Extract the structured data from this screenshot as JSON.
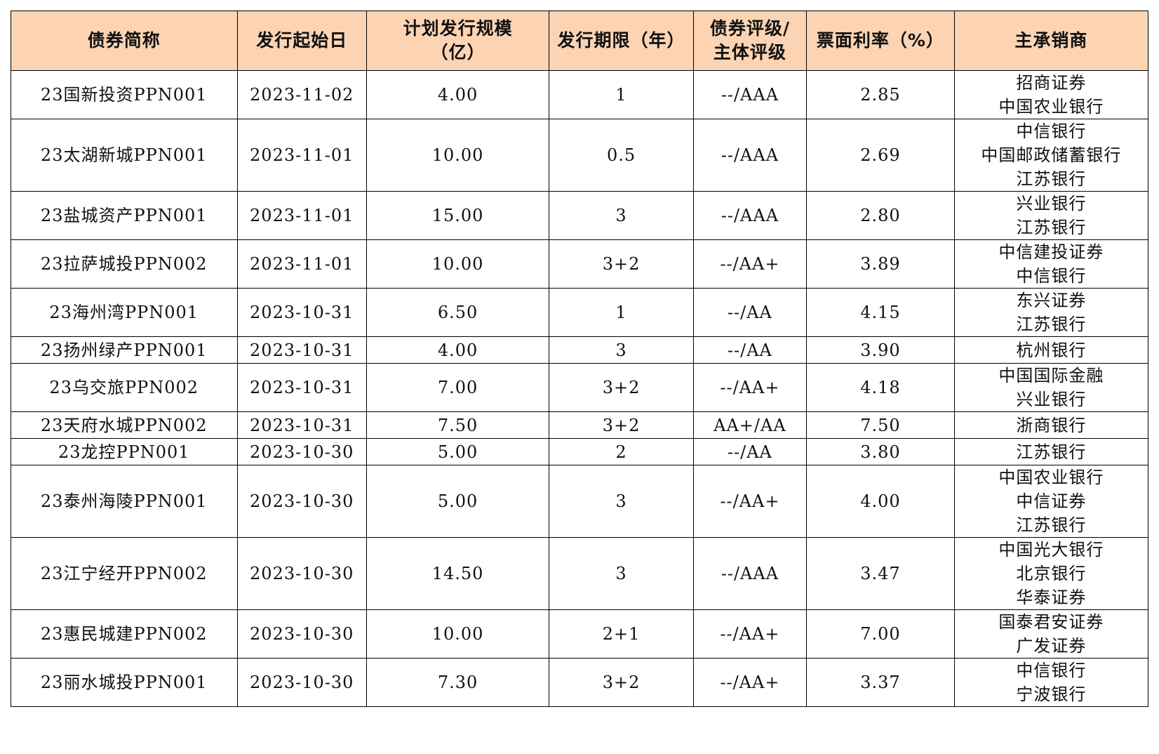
{
  "header_bg_color": "#FCD4B4",
  "columns": [
    {
      "key": "name",
      "lines": [
        "债券简称"
      ]
    },
    {
      "key": "start_date",
      "lines": [
        "发行起始日"
      ]
    },
    {
      "key": "scale",
      "lines": [
        "计划发行规模",
        "（亿）"
      ]
    },
    {
      "key": "term",
      "lines": [
        "发行期限（年）"
      ]
    },
    {
      "key": "rating",
      "lines": [
        "债券评级/",
        "主体评级"
      ]
    },
    {
      "key": "coupon",
      "lines": [
        "票面利率（%）"
      ]
    },
    {
      "key": "underwriter",
      "lines": [
        "主承销商"
      ]
    }
  ],
  "rows": [
    {
      "name": "23国新投资PPN001",
      "start_date": "2023-11-02",
      "scale": "4.00",
      "term": "1",
      "rating": "--/AAA",
      "coupon": "2.85",
      "underwriters": [
        "招商证券",
        "中国农业银行"
      ]
    },
    {
      "name": "23太湖新城PPN001",
      "start_date": "2023-11-01",
      "scale": "10.00",
      "term": "0.5",
      "rating": "--/AAA",
      "coupon": "2.69",
      "underwriters": [
        "中信银行",
        "中国邮政储蓄银行",
        "江苏银行"
      ]
    },
    {
      "name": "23盐城资产PPN001",
      "start_date": "2023-11-01",
      "scale": "15.00",
      "term": "3",
      "rating": "--/AAA",
      "coupon": "2.80",
      "underwriters": [
        "兴业银行",
        "江苏银行"
      ]
    },
    {
      "name": "23拉萨城投PPN002",
      "start_date": "2023-11-01",
      "scale": "10.00",
      "term": "3+2",
      "rating": "--/AA+",
      "coupon": "3.89",
      "underwriters": [
        "中信建投证券",
        "中信银行"
      ]
    },
    {
      "name": "23海州湾PPN001",
      "start_date": "2023-10-31",
      "scale": "6.50",
      "term": "1",
      "rating": "--/AA",
      "coupon": "4.15",
      "underwriters": [
        "东兴证券",
        "江苏银行"
      ]
    },
    {
      "name": "23扬州绿产PPN001",
      "start_date": "2023-10-31",
      "scale": "4.00",
      "term": "3",
      "rating": "--/AA",
      "coupon": "3.90",
      "underwriters": [
        "杭州银行"
      ]
    },
    {
      "name": "23乌交旅PPN002",
      "start_date": "2023-10-31",
      "scale": "7.00",
      "term": "3+2",
      "rating": "--/AA+",
      "coupon": "4.18",
      "underwriters": [
        "中国国际金融",
        "兴业银行"
      ]
    },
    {
      "name": "23天府水城PPN002",
      "start_date": "2023-10-31",
      "scale": "7.50",
      "term": "3+2",
      "rating": "AA+/AA",
      "coupon": "7.50",
      "underwriters": [
        "浙商银行"
      ]
    },
    {
      "name": "23龙控PPN001",
      "start_date": "2023-10-30",
      "scale": "5.00",
      "term": "2",
      "rating": "--/AA",
      "coupon": "3.80",
      "underwriters": [
        "江苏银行"
      ]
    },
    {
      "name": "23泰州海陵PPN001",
      "start_date": "2023-10-30",
      "scale": "5.00",
      "term": "3",
      "rating": "--/AA+",
      "coupon": "4.00",
      "underwriters": [
        "中国农业银行",
        "中信证券",
        "江苏银行"
      ]
    },
    {
      "name": "23江宁经开PPN002",
      "start_date": "2023-10-30",
      "scale": "14.50",
      "term": "3",
      "rating": "--/AAA",
      "coupon": "3.47",
      "underwriters": [
        "中国光大银行",
        "北京银行",
        "华泰证券"
      ]
    },
    {
      "name": "23惠民城建PPN002",
      "start_date": "2023-10-30",
      "scale": "10.00",
      "term": "2+1",
      "rating": "--/AA+",
      "coupon": "7.00",
      "underwriters": [
        "国泰君安证券",
        "广发证券"
      ]
    },
    {
      "name": "23丽水城投PPN001",
      "start_date": "2023-10-30",
      "scale": "7.30",
      "term": "3+2",
      "rating": "--/AA+",
      "coupon": "3.37",
      "underwriters": [
        "中信银行",
        "宁波银行"
      ]
    }
  ]
}
